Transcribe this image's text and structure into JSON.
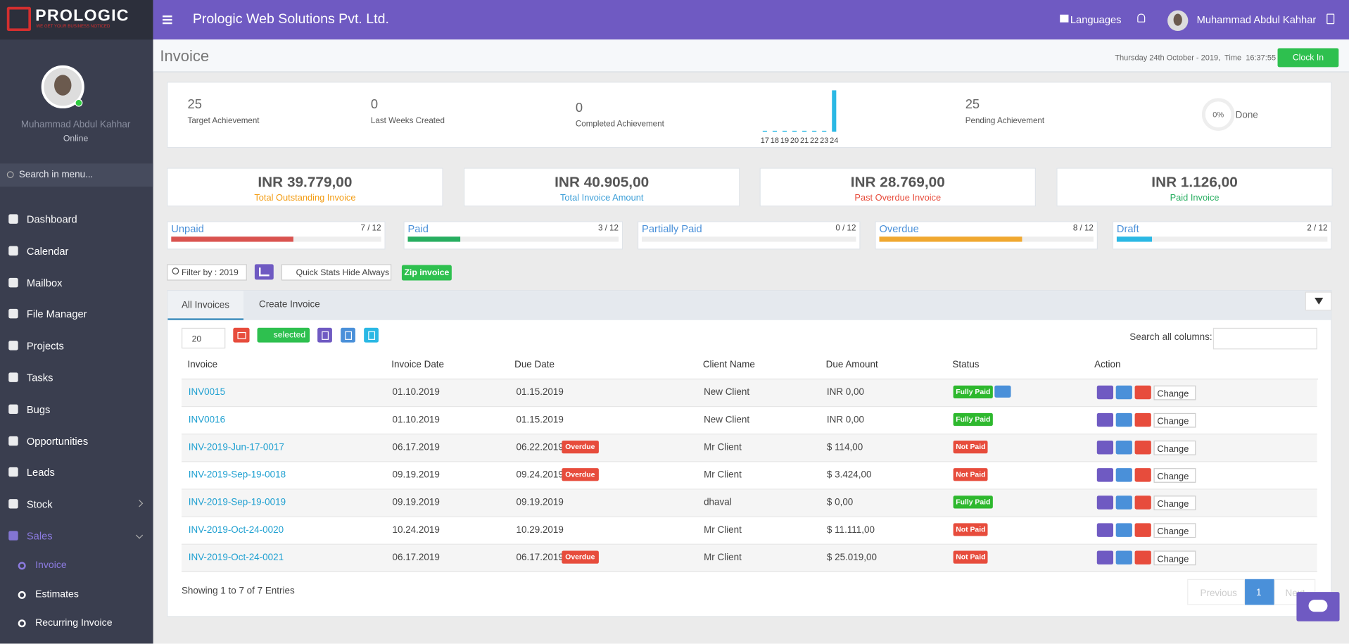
{
  "brand": {
    "name": "PROLOGIC",
    "tagline": "WE GET YOUR BUSINESS NOTICED"
  },
  "header": {
    "company": "Prologic Web Solutions Pvt. Ltd.",
    "languages": "Languages",
    "user": "Muhammad Abdul Kahhar"
  },
  "sidebar": {
    "user": "Muhammad Abdul Kahhar",
    "status": "Online",
    "search": "Search in menu...",
    "menu": [
      "Dashboard",
      "Calendar",
      "Mailbox",
      "File Manager",
      "Projects",
      "Tasks",
      "Bugs",
      "Opportunities",
      "Leads",
      "Stock",
      "Sales"
    ],
    "submenu": [
      "Invoice",
      "Estimates",
      "Recurring Invoice"
    ]
  },
  "page": {
    "title": "Invoice",
    "datetime": "Thursday 24th October - 2019,  Time  16:37:55",
    "clock_in": "Clock In"
  },
  "stats": [
    {
      "value": "25",
      "label": "Target Achievement"
    },
    {
      "value": "0",
      "label": "Last Weeks Created"
    },
    {
      "value": "0",
      "label": "Completed Achievement"
    },
    {
      "value": "25",
      "label": "Pending Achievement"
    }
  ],
  "mini_chart": {
    "type": "bar",
    "categories": [
      "17",
      "18",
      "19",
      "20",
      "21",
      "22",
      "23",
      "24"
    ],
    "values": [
      0,
      0,
      0,
      0,
      0,
      0,
      0,
      25
    ]
  },
  "done": {
    "percent": "0%",
    "label": "Done"
  },
  "totals": [
    {
      "amount": "INR 39.779,00",
      "label": "Total Outstanding Invoice",
      "color": "#f39c12"
    },
    {
      "amount": "INR 40.905,00",
      "label": "Total Invoice Amount",
      "color": "#3c9fd8"
    },
    {
      "amount": "INR 28.769,00",
      "label": "Past Overdue Invoice",
      "color": "#e74c3c"
    },
    {
      "amount": "INR 1.126,00",
      "label": "Paid Invoice",
      "color": "#27ae60"
    }
  ],
  "progress": [
    {
      "label": "Unpaid",
      "count": "7 / 12",
      "color": "#d9534f"
    },
    {
      "label": "Paid",
      "count": "3 / 12",
      "color": "#27ae60"
    },
    {
      "label": "Partially Paid",
      "count": "0 / 12",
      "color": "#3c9fd8"
    },
    {
      "label": "Overdue",
      "count": "8 / 12",
      "color": "#f0a830"
    },
    {
      "label": "Draft",
      "count": "2 / 12",
      "color": "#2ab8e4"
    }
  ],
  "toolbar": {
    "filter": "Filter by : 2019",
    "quick_stats": "Quick Stats Hide Always",
    "zip": "Zip invoice"
  },
  "tabs": [
    "All Invoices",
    "Create Invoice"
  ],
  "table": {
    "page_size": "20",
    "selected": "selected",
    "search_label": "Search all columns:",
    "columns": [
      "Invoice",
      "Invoice Date",
      "Due Date",
      "Client Name",
      "Due Amount",
      "Status",
      "Action"
    ],
    "action_label": "Change",
    "rows": [
      {
        "invoice": "INV0015",
        "invoice_date": "01.10.2019",
        "due_date": "01.15.2019",
        "client": "New Client",
        "due_amount": "INR 0,00",
        "status": "Fully Paid"
      },
      {
        "invoice": "INV0016",
        "invoice_date": "01.10.2019",
        "due_date": "01.15.2019",
        "client": "New Client",
        "due_amount": "INR 0,00",
        "status": "Fully Paid"
      },
      {
        "invoice": "INV-2019-Jun-17-0017",
        "invoice_date": "06.17.2019",
        "due_date": "06.22.2019",
        "overdue": "Overdue",
        "client": "Mr Client",
        "due_amount": "$ 114,00",
        "status": "Not Paid"
      },
      {
        "invoice": "INV-2019-Sep-19-0018",
        "invoice_date": "09.19.2019",
        "due_date": "09.24.2019",
        "overdue": "Overdue",
        "client": "Mr Client",
        "due_amount": "$ 3.424,00",
        "status": "Not Paid"
      },
      {
        "invoice": "INV-2019-Sep-19-0019",
        "invoice_date": "09.19.2019",
        "due_date": "09.19.2019",
        "client": "dhaval",
        "due_amount": "$ 0,00",
        "status": "Fully Paid"
      },
      {
        "invoice": "INV-2019-Oct-24-0020",
        "invoice_date": "10.24.2019",
        "due_date": "10.29.2019",
        "client": "Mr Client",
        "due_amount": "$ 11.111,00",
        "status": "Not Paid"
      },
      {
        "invoice": "INV-2019-Oct-24-0021",
        "invoice_date": "06.17.2019",
        "due_date": "06.17.2019",
        "overdue": "Overdue",
        "client": "Mr Client",
        "due_amount": "$ 25.019,00",
        "status": "Not Paid"
      }
    ]
  },
  "footer": {
    "showing": "Showing 1 to 7 of 7 Entries",
    "previous": "Previous",
    "page": "1",
    "next": "Next"
  }
}
